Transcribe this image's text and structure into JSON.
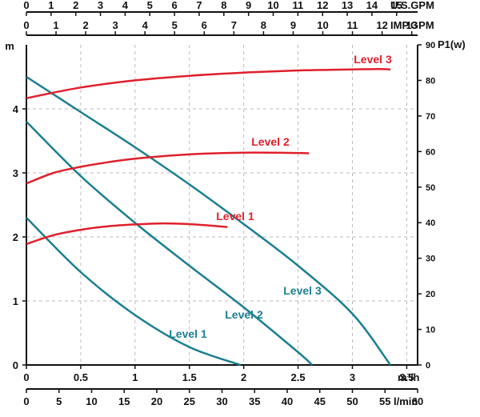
{
  "chart_data": {
    "type": "line",
    "title": "",
    "colors": {
      "head": "#1a7f8f",
      "power": "#e0202c"
    },
    "axes": {
      "left": {
        "label": "m",
        "range": [
          0,
          5
        ],
        "ticks": [
          "0",
          "1",
          "2",
          "3",
          "4"
        ],
        "tick_values": [
          0,
          1,
          2,
          3,
          4
        ]
      },
      "right": {
        "label": "P1(w)",
        "range": [
          0,
          90
        ],
        "ticks": [
          "0",
          "10",
          "20",
          "30",
          "40",
          "50",
          "60",
          "70",
          "80",
          "90"
        ],
        "tick_values": [
          0,
          10,
          20,
          30,
          40,
          50,
          60,
          70,
          80,
          90
        ]
      },
      "x_m3h": {
        "label": "m³/h",
        "range": [
          0,
          3.6
        ],
        "ticks": [
          "0",
          "0.5",
          "1",
          "1.5",
          "2",
          "2.5",
          "3",
          "3.5"
        ],
        "tick_values": [
          0,
          0.5,
          1,
          1.5,
          2,
          2.5,
          3,
          3.5
        ]
      },
      "x_lmin": {
        "label": "l/min",
        "range": [
          0,
          60
        ],
        "ticks": [
          "0",
          "5",
          "10",
          "15",
          "20",
          "25",
          "30",
          "35",
          "40",
          "45",
          "50",
          "55",
          "60"
        ],
        "tick_values": [
          0,
          5,
          10,
          15,
          20,
          25,
          30,
          35,
          40,
          45,
          50,
          55,
          60
        ]
      },
      "x_usgpm": {
        "label": "U.S.GPM",
        "range": [
          0,
          15.85
        ],
        "ticks": [
          "0",
          "1",
          "2",
          "3",
          "4",
          "5",
          "6",
          "7",
          "8",
          "9",
          "10",
          "11",
          "12",
          "13",
          "14",
          "15"
        ],
        "tick_values": [
          0,
          1,
          2,
          3,
          4,
          5,
          6,
          7,
          8,
          9,
          10,
          11,
          12,
          13,
          14,
          15
        ]
      },
      "x_impgpm": {
        "label": "IMP.GPM",
        "range": [
          0,
          13.2
        ],
        "ticks": [
          "0",
          "1",
          "2",
          "3",
          "4",
          "5",
          "6",
          "7",
          "8",
          "9",
          "10",
          "11",
          "12",
          "13"
        ],
        "tick_values": [
          0,
          1,
          2,
          3,
          4,
          5,
          6,
          7,
          8,
          9,
          10,
          11,
          12,
          13
        ]
      }
    },
    "head_series": [
      {
        "name": "Level 1",
        "x": [
          0,
          0.5,
          1,
          1.5,
          1.97
        ],
        "y": [
          2.3,
          1.45,
          0.78,
          0.28,
          0
        ]
      },
      {
        "name": "Level 2",
        "x": [
          0,
          0.5,
          1,
          1.5,
          2,
          2.5,
          2.63
        ],
        "y": [
          3.8,
          2.95,
          2.22,
          1.55,
          0.9,
          0.2,
          0
        ]
      },
      {
        "name": "Level 3",
        "x": [
          0,
          0.5,
          1,
          1.5,
          2,
          2.5,
          3,
          3.35
        ],
        "y": [
          4.5,
          3.95,
          3.4,
          2.82,
          2.2,
          1.55,
          0.8,
          0
        ]
      }
    ],
    "power_series": [
      {
        "name": "Level 1",
        "x": [
          0,
          0.25,
          0.5,
          0.75,
          1,
          1.25,
          1.5,
          1.85
        ],
        "y": [
          34,
          36.5,
          38,
          39,
          39.5,
          39.8,
          39.6,
          38.8
        ]
      },
      {
        "name": "Level 2",
        "x": [
          0,
          0.25,
          0.5,
          0.75,
          1,
          1.5,
          2,
          2.5,
          2.6
        ],
        "y": [
          51,
          54,
          55.7,
          57,
          58,
          59.2,
          59.7,
          59.6,
          59.5
        ]
      },
      {
        "name": "Level 3",
        "x": [
          0,
          0.5,
          1,
          1.5,
          2,
          2.5,
          3,
          3.25,
          3.35
        ],
        "y": [
          75,
          78,
          80,
          81.3,
          82.2,
          82.8,
          83.1,
          83.2,
          83.1
        ]
      }
    ]
  }
}
